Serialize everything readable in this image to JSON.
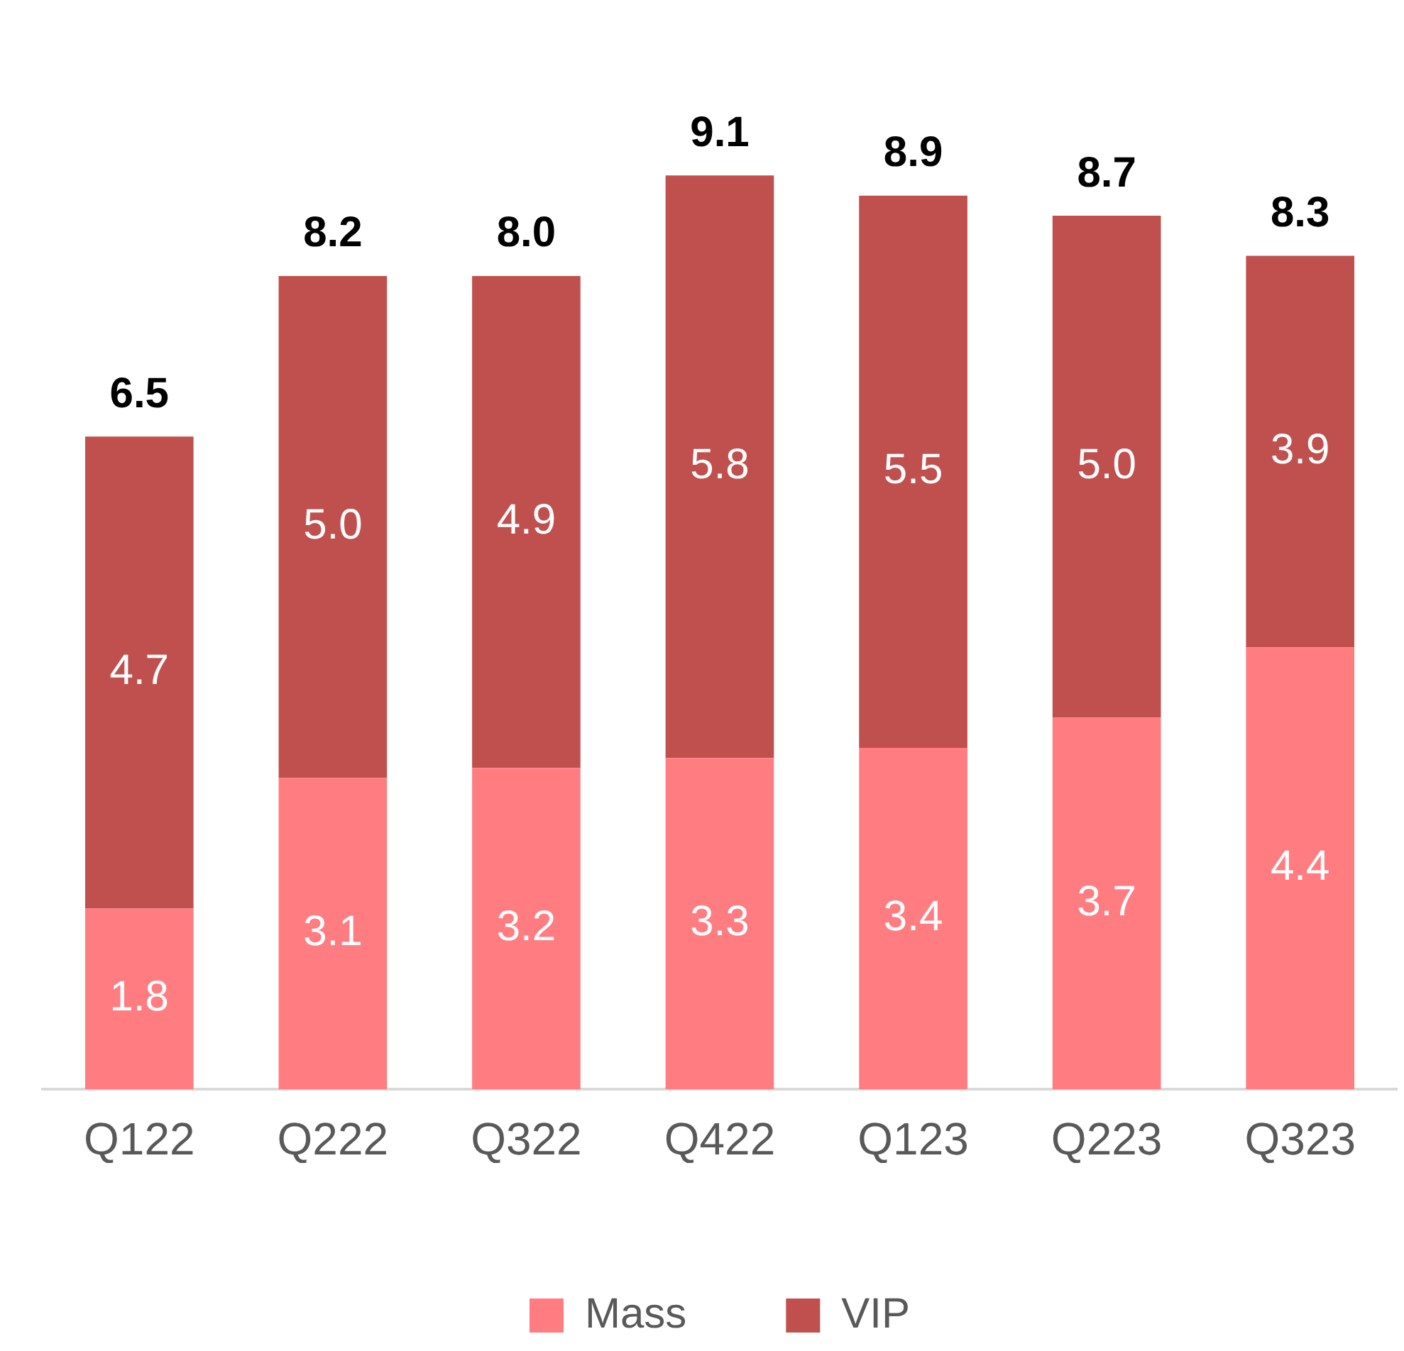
{
  "chart_data": {
    "type": "bar",
    "stacked": true,
    "categories": [
      "Q122",
      "Q222",
      "Q322",
      "Q422",
      "Q123",
      "Q223",
      "Q323"
    ],
    "series": [
      {
        "name": "Mass",
        "color": "#ff7c80",
        "values": [
          1.8,
          3.1,
          3.2,
          3.3,
          3.4,
          3.7,
          4.4
        ],
        "value_labels": [
          "1.8",
          "3.1",
          "3.2",
          "3.3",
          "3.4",
          "3.7",
          "4.4"
        ]
      },
      {
        "name": "VIP",
        "color": "#c0504d",
        "values": [
          4.7,
          5.0,
          4.9,
          5.8,
          5.5,
          5.0,
          3.9
        ],
        "value_labels": [
          "4.7",
          "5.0",
          "4.9",
          "5.8",
          "5.5",
          "5.0",
          "3.9"
        ]
      }
    ],
    "totals": [
      "6.5",
      "8.2",
      "8.0",
      "9.1",
      "8.9",
      "8.7",
      "8.3"
    ],
    "legend": "bottom",
    "grid": false,
    "tick_labels": "x"
  }
}
